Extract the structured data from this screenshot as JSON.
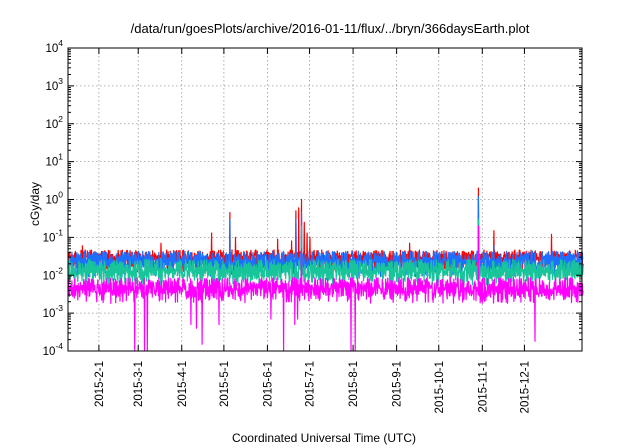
{
  "chart_data": {
    "type": "line",
    "title": "/data/run/goesPlots/archive/2016-01-11/flux/../bryn/366daysEarth.plot",
    "xlabel": "Coordinated Universal Time (UTC)",
    "ylabel": "cGy/day",
    "yscale": "log",
    "ylim": [
      0.0001,
      10000
    ],
    "xlim": [
      "2015-01-10",
      "2016-01-11"
    ],
    "y_ticks": [
      {
        "base": "10",
        "exp": "-4",
        "value": 0.0001
      },
      {
        "base": "10",
        "exp": "-3",
        "value": 0.001
      },
      {
        "base": "10",
        "exp": "-2",
        "value": 0.01
      },
      {
        "base": "10",
        "exp": "-1",
        "value": 0.1
      },
      {
        "base": "10",
        "exp": "0",
        "value": 1
      },
      {
        "base": "10",
        "exp": "1",
        "value": 10
      },
      {
        "base": "10",
        "exp": "2",
        "value": 100
      },
      {
        "base": "10",
        "exp": "3",
        "value": 1000
      },
      {
        "base": "10",
        "exp": "4",
        "value": 10000
      }
    ],
    "x_ticks": [
      "2015-2-1",
      "2015-3-1",
      "2015-4-1",
      "2015-5-1",
      "2015-6-1",
      "2015-7-1",
      "2015-8-1",
      "2015-9-1",
      "2015-10-1",
      "2015-11-1",
      "2015-12-1"
    ],
    "grid": true,
    "series": [
      {
        "color": "#ff0000",
        "baseline": 0.04,
        "spikes": [
          {
            "x": "2015-01-20",
            "y": 0.06
          },
          {
            "x": "2015-03-17",
            "y": 0.07
          },
          {
            "x": "2015-04-22",
            "y": 0.13
          },
          {
            "x": "2015-05-05",
            "y": 0.45
          },
          {
            "x": "2015-05-09",
            "y": 0.1
          },
          {
            "x": "2015-06-08",
            "y": 0.09
          },
          {
            "x": "2015-06-18",
            "y": 0.08
          },
          {
            "x": "2015-06-21",
            "y": 0.5
          },
          {
            "x": "2015-06-23",
            "y": 0.6
          },
          {
            "x": "2015-06-25",
            "y": 1.0
          },
          {
            "x": "2015-06-27",
            "y": 0.25
          },
          {
            "x": "2015-06-29",
            "y": 0.13
          },
          {
            "x": "2015-07-01",
            "y": 0.1
          },
          {
            "x": "2015-09-10",
            "y": 0.07
          },
          {
            "x": "2015-10-29",
            "y": 2.0
          },
          {
            "x": "2015-11-09",
            "y": 0.15
          },
          {
            "x": "2015-12-20",
            "y": 0.12
          }
        ]
      },
      {
        "color": "#1e6fff",
        "baseline": 0.03,
        "spikes": [
          {
            "x": "2015-05-05",
            "y": 0.3
          },
          {
            "x": "2015-06-21",
            "y": 0.3
          },
          {
            "x": "2015-06-25",
            "y": 0.45
          },
          {
            "x": "2015-10-29",
            "y": 1.2
          },
          {
            "x": "2015-11-09",
            "y": 0.06
          }
        ]
      },
      {
        "color": "#18c49a",
        "baseline": 0.018,
        "spikes": [
          {
            "x": "2015-06-25",
            "y": 0.2
          },
          {
            "x": "2015-10-29",
            "y": 0.3
          }
        ]
      },
      {
        "color": "#ff00ff",
        "baseline": 0.006,
        "spikes": [
          {
            "x": "2015-10-29",
            "y": 0.2
          },
          {
            "x": "2015-06-25",
            "y": 0.05
          }
        ],
        "dips": [
          {
            "x": "2015-02-26",
            "y": 0.0001
          },
          {
            "x": "2015-03-05",
            "y": 0.0001
          },
          {
            "x": "2015-03-07",
            "y": 0.0001
          },
          {
            "x": "2015-04-07",
            "y": 0.0005
          },
          {
            "x": "2015-04-11",
            "y": 0.0004
          },
          {
            "x": "2015-04-15",
            "y": 0.00015
          },
          {
            "x": "2015-04-27",
            "y": 0.0005
          },
          {
            "x": "2015-06-03",
            "y": 0.0007
          },
          {
            "x": "2015-06-12",
            "y": 0.0001
          },
          {
            "x": "2015-06-20",
            "y": 0.0005
          },
          {
            "x": "2015-06-22",
            "y": 0.0007
          },
          {
            "x": "2015-07-30",
            "y": 0.0001
          },
          {
            "x": "2015-08-02",
            "y": 0.0001
          },
          {
            "x": "2015-12-08",
            "y": 0.00018
          }
        ]
      }
    ]
  }
}
